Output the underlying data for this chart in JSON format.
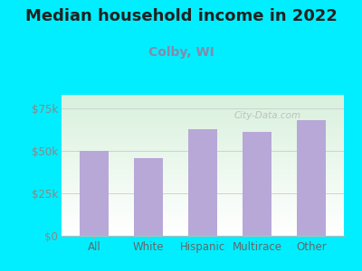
{
  "title": "Median household income in 2022",
  "subtitle": "Colby, WI",
  "categories": [
    "All",
    "White",
    "Hispanic",
    "Multirace",
    "Other"
  ],
  "values": [
    50000,
    46000,
    63000,
    61000,
    68000
  ],
  "bar_color": "#b8a8d8",
  "background_outer": "#00eeff",
  "background_inner_top_left": "#d8f0dc",
  "background_inner_bottom_right": "#ffffff",
  "title_color": "#222222",
  "subtitle_color": "#8888aa",
  "tick_label_color": "#888888",
  "xlabel_color": "#666666",
  "ylim": [
    0,
    83000
  ],
  "yticks": [
    0,
    25000,
    50000,
    75000
  ],
  "ytick_labels": [
    "$0",
    "$25k",
    "$50k",
    "$75k"
  ],
  "watermark": "City-Data.com",
  "title_fontsize": 13,
  "subtitle_fontsize": 10,
  "tick_fontsize": 8.5
}
